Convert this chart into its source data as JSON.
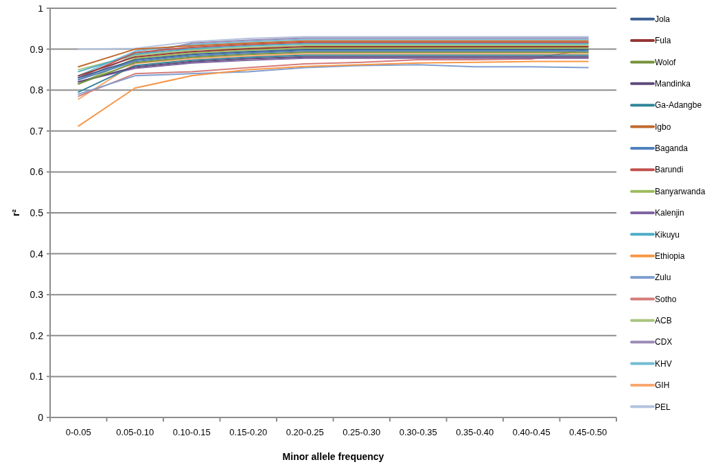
{
  "chart_data": {
    "type": "line",
    "xlabel": "Minor allele frequency",
    "ylabel": "r²",
    "categories": [
      "0-0.05",
      "0.05-0.10",
      "0.10-0.15",
      "0.15-0.20",
      "0.20-0.25",
      "0.25-0.30",
      "0.30-0.35",
      "0.35-0.40",
      "0.40-0.45",
      "0.45-0.50"
    ],
    "ylim": [
      0,
      1
    ],
    "yticks": [
      0,
      0.1,
      0.2,
      0.3,
      0.4,
      0.5,
      0.6,
      0.7,
      0.8,
      0.9,
      1
    ],
    "grid": "y",
    "legend": "right",
    "line_style": "solid",
    "marker": "none",
    "series": [
      {
        "name": "Jola",
        "color": "#3b5f91",
        "values": [
          0.83,
          0.874,
          0.887,
          0.894,
          0.899,
          0.899,
          0.899,
          0.899,
          0.899,
          0.899
        ]
      },
      {
        "name": "Fula",
        "color": "#943634",
        "values": [
          0.835,
          0.881,
          0.894,
          0.901,
          0.906,
          0.906,
          0.906,
          0.906,
          0.906,
          0.906
        ]
      },
      {
        "name": "Wolof",
        "color": "#76923c",
        "values": [
          0.815,
          0.867,
          0.88,
          0.887,
          0.892,
          0.892,
          0.892,
          0.892,
          0.892,
          0.892
        ]
      },
      {
        "name": "Mandinka",
        "color": "#5f497a",
        "values": [
          0.82,
          0.8565,
          0.8695,
          0.8765,
          0.8815,
          0.8815,
          0.8815,
          0.8815,
          0.8815,
          0.8815
        ]
      },
      {
        "name": "Ga-Adangbe",
        "color": "#31859c",
        "values": [
          0.795,
          0.86,
          0.873,
          0.88,
          0.885,
          0.885,
          0.885,
          0.885,
          0.885,
          0.885
        ]
      },
      {
        "name": "Igbo",
        "color": "#c0692c",
        "values": [
          0.857,
          0.9,
          0.908,
          0.915,
          0.92,
          0.92,
          0.92,
          0.92,
          0.92,
          0.92
        ]
      },
      {
        "name": "Baganda",
        "color": "#4f81bd",
        "values": [
          0.825,
          0.8705,
          0.8835,
          0.8905,
          0.8955,
          0.8955,
          0.8955,
          0.8955,
          0.8955,
          0.8955
        ]
      },
      {
        "name": "Barundi",
        "color": "#c0504d",
        "values": [
          0.83,
          0.8915,
          0.9045,
          0.9115,
          0.9165,
          0.9165,
          0.9165,
          0.9165,
          0.9165,
          0.9165
        ]
      },
      {
        "name": "Banyarwanda",
        "color": "#9bbb59",
        "values": [
          0.815,
          0.8775,
          0.8905,
          0.8975,
          0.9025,
          0.9025,
          0.9025,
          0.9025,
          0.9025,
          0.9025
        ]
      },
      {
        "name": "Kalenjin",
        "color": "#8064a2",
        "values": [
          0.82,
          0.853,
          0.866,
          0.873,
          0.878,
          0.878,
          0.878,
          0.878,
          0.878,
          0.878
        ]
      },
      {
        "name": "Kikuyu",
        "color": "#4bacc6",
        "values": [
          0.845,
          0.888,
          0.901,
          0.908,
          0.913,
          0.913,
          0.913,
          0.913,
          0.913,
          0.913
        ]
      },
      {
        "name": "Ethiopia",
        "color": "#f79646",
        "values": [
          0.712,
          0.805,
          0.835,
          0.85,
          0.858,
          0.862,
          0.866,
          0.868,
          0.87,
          0.87
        ]
      },
      {
        "name": "Zulu",
        "color": "#7f9fcf",
        "values": [
          0.79,
          0.835,
          0.84,
          0.845,
          0.855,
          0.86,
          0.862,
          0.857,
          0.857,
          0.855
        ]
      },
      {
        "name": "Sotho",
        "color": "#d47b78",
        "values": [
          0.785,
          0.84,
          0.845,
          0.855,
          0.864,
          0.868,
          0.874,
          0.874,
          0.876,
          0.9
        ]
      },
      {
        "name": "ACB",
        "color": "#a9c47f",
        "values": [
          0.85,
          0.8845,
          0.8975,
          0.9045,
          0.9095,
          0.9095,
          0.9095,
          0.9095,
          0.9095,
          0.9095
        ]
      },
      {
        "name": "CDX",
        "color": "#9d8bb8",
        "values": [
          0.825,
          0.885,
          0.915,
          0.922,
          0.927,
          0.927,
          0.927,
          0.927,
          0.927,
          0.927
        ]
      },
      {
        "name": "KHV",
        "color": "#72bcd4",
        "values": [
          0.835,
          0.895,
          0.9115,
          0.9185,
          0.9235,
          0.9235,
          0.9235,
          0.9235,
          0.9235,
          0.9235
        ]
      },
      {
        "name": "GIH",
        "color": "#f9a870",
        "values": [
          0.778,
          0.865,
          0.8765,
          0.8835,
          0.8885,
          0.8885,
          0.8885,
          0.8885,
          0.8885,
          0.8885
        ]
      },
      {
        "name": "PEL",
        "color": "#b3c3df",
        "values": [
          0.9,
          0.902,
          0.918,
          0.926,
          0.9305,
          0.9305,
          0.9305,
          0.9305,
          0.9305,
          0.9305
        ]
      }
    ]
  }
}
